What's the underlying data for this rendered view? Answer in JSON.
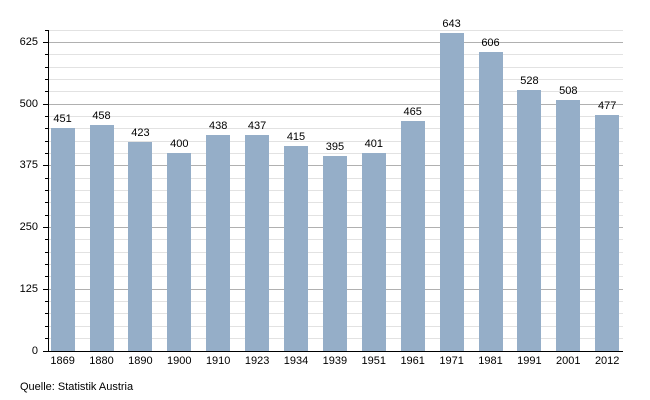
{
  "source": "Quelle: Statistik Austria",
  "colors": {
    "bar": "#95aec8",
    "grid_minor": "#e2e2e2",
    "grid_major": "#b0b0b0",
    "axis": "#000000",
    "text": "#000000",
    "background": "#ffffff"
  },
  "chart_data": {
    "type": "bar",
    "title": "",
    "xlabel": "",
    "ylabel": "",
    "categories": [
      "1869",
      "1880",
      "1890",
      "1900",
      "1910",
      "1923",
      "1934",
      "1939",
      "1951",
      "1961",
      "1971",
      "1981",
      "1991",
      "2001",
      "2012"
    ],
    "values": [
      451,
      458,
      423,
      400,
      438,
      437,
      415,
      395,
      401,
      465,
      643,
      606,
      528,
      508,
      477
    ],
    "bar_value_labels": true,
    "ylim": [
      0,
      650
    ],
    "yticks_major": [
      0,
      125,
      250,
      375,
      500,
      625
    ],
    "ytick_minor_step": 25,
    "grid": "horizontal minor every 25 (light), major every 125 (darker), drawn behind bars",
    "legend": "none",
    "caption": "Quelle: Statistik Austria"
  }
}
